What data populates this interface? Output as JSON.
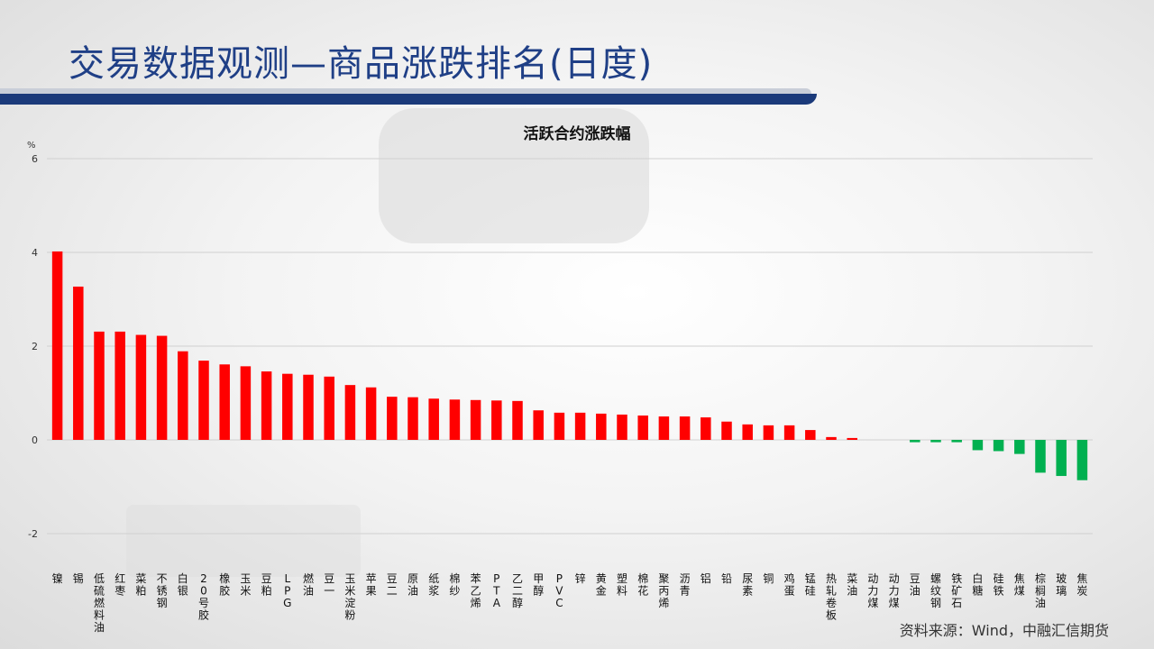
{
  "title": "交易数据观测—商品涨跌排名(日度)",
  "source": "资料来源：Wind，中融汇信期货",
  "colors": {
    "up": "#ff0000",
    "down": "#00b050",
    "title": "#1f3f86",
    "bar": "#1b3a7a"
  },
  "chart_data": {
    "type": "bar",
    "title": "活跃合约涨跌幅",
    "ylabel": "%",
    "ylim": [
      -2,
      6
    ],
    "yticks": [
      -2,
      0,
      2,
      4,
      6
    ],
    "grid": true,
    "categories": [
      "镍",
      "锡",
      "低硫燃料油",
      "红枣",
      "菜粕",
      "不锈钢",
      "白银",
      "20号胶",
      "橡胶",
      "玉米",
      "豆粕",
      "LPG",
      "燃油",
      "豆一",
      "玉米淀粉",
      "苹果",
      "豆二",
      "原油",
      "纸浆",
      "棉纱",
      "苯乙烯",
      "PTA",
      "乙二醇",
      "甲醇",
      "PVC",
      "锌",
      "黄金",
      "塑料",
      "棉花",
      "聚丙烯",
      "沥青",
      "铝",
      "铅",
      "尿素",
      "铜",
      "鸡蛋",
      "锰硅",
      "热轧卷板",
      "菜油",
      "动力煤",
      "动力煤",
      "豆油",
      "螺纹钢",
      "铁矿石",
      "白糖",
      "硅铁",
      "焦煤",
      "棕榈油",
      "玻璃",
      "焦炭"
    ],
    "values": [
      4.02,
      3.27,
      2.31,
      2.31,
      2.24,
      2.22,
      1.89,
      1.69,
      1.61,
      1.57,
      1.46,
      1.41,
      1.39,
      1.35,
      1.17,
      1.12,
      0.92,
      0.91,
      0.88,
      0.86,
      0.85,
      0.84,
      0.83,
      0.63,
      0.58,
      0.58,
      0.56,
      0.54,
      0.52,
      0.5,
      0.5,
      0.48,
      0.39,
      0.33,
      0.31,
      0.31,
      0.21,
      0.06,
      0.04,
      0.0,
      0.0,
      -0.05,
      -0.05,
      -0.05,
      -0.22,
      -0.24,
      -0.3,
      -0.7,
      -0.77,
      -0.86
    ]
  }
}
